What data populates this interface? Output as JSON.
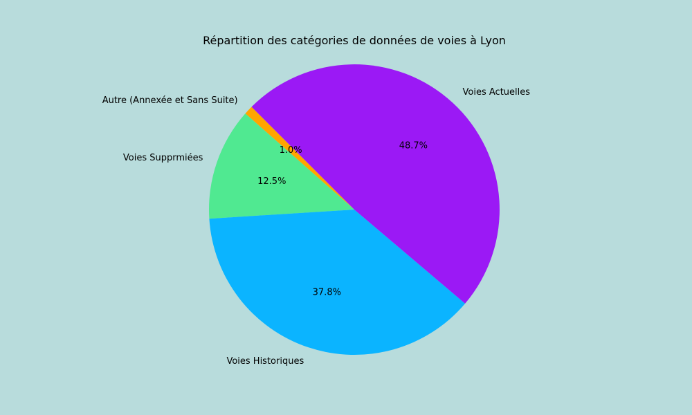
{
  "chart_data": {
    "type": "pie",
    "title": "Répartition des catégories de données de voies à Lyon",
    "start_angle_deg": 135,
    "counterclockwise": true,
    "slices": [
      {
        "label": "Autre (Annexée et Sans Suite)",
        "value": 1.0,
        "pct_label": "1.0%",
        "color": "#ffa500"
      },
      {
        "label": "Voies Supprmiées",
        "value": 12.5,
        "pct_label": "12.5%",
        "color": "#50e991"
      },
      {
        "label": "Voies Historiques",
        "value": 37.8,
        "pct_label": "37.8%",
        "color": "#0bb4ff"
      },
      {
        "label": "Voies Actuelles",
        "value": 48.7,
        "pct_label": "48.7%",
        "color": "#9b19f5"
      }
    ],
    "background_color": "#b8dcdc"
  }
}
